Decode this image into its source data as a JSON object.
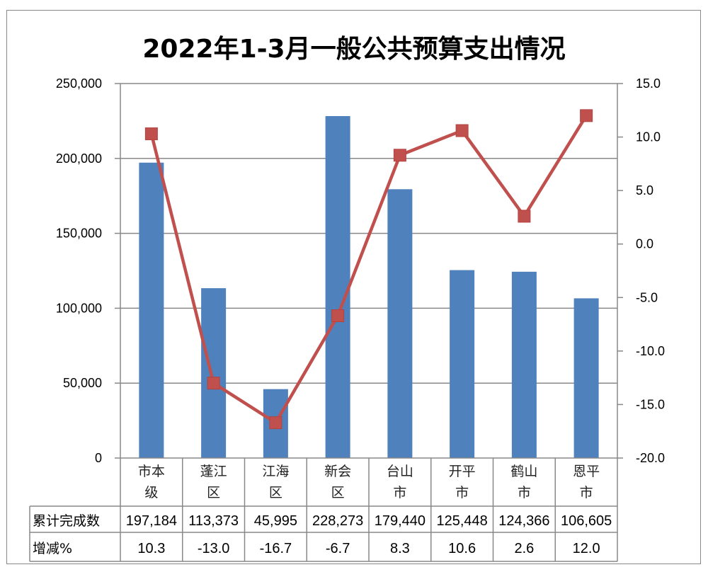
{
  "chart_data": {
    "type": "bar+line",
    "title": "2022年1-3月一般公共预算支出情况",
    "categories": [
      [
        "市本",
        "级"
      ],
      [
        "蓬江",
        "区"
      ],
      [
        "江海",
        "区"
      ],
      [
        "新会",
        "区"
      ],
      [
        "台山",
        "市"
      ],
      [
        "开平",
        "市"
      ],
      [
        "鹤山",
        "市"
      ],
      [
        "恩平",
        "市"
      ]
    ],
    "series": [
      {
        "name": "累计完成数",
        "type": "bar",
        "axis": "left",
        "color": "#4F81BD",
        "values": [
          197184,
          113373,
          45995,
          228273,
          179440,
          125448,
          124366,
          106605
        ],
        "labels": [
          "197,184",
          "113,373",
          "45,995",
          "228,273",
          "179,440",
          "125,448",
          "124,366",
          "106,605"
        ]
      },
      {
        "name": "增减%",
        "type": "line",
        "axis": "right",
        "color": "#C0504D",
        "values": [
          10.3,
          -13.0,
          -16.7,
          -6.7,
          8.3,
          10.6,
          2.6,
          12.0
        ],
        "labels": [
          "10.3",
          "-13.0",
          "-16.7",
          "-6.7",
          "8.3",
          "10.6",
          "2.6",
          "12.0"
        ]
      }
    ],
    "left_axis": {
      "min": 0,
      "max": 250000,
      "ticks": [
        "0",
        "50,000",
        "100,000",
        "150,000",
        "200,000",
        "250,000"
      ]
    },
    "right_axis": {
      "min": -20,
      "max": 15,
      "ticks": [
        "-20.0",
        "-15.0",
        "-10.0",
        "-5.0",
        "0.0",
        "5.0",
        "10.0",
        "15.0"
      ]
    },
    "grid": true,
    "legend": "data-table"
  }
}
